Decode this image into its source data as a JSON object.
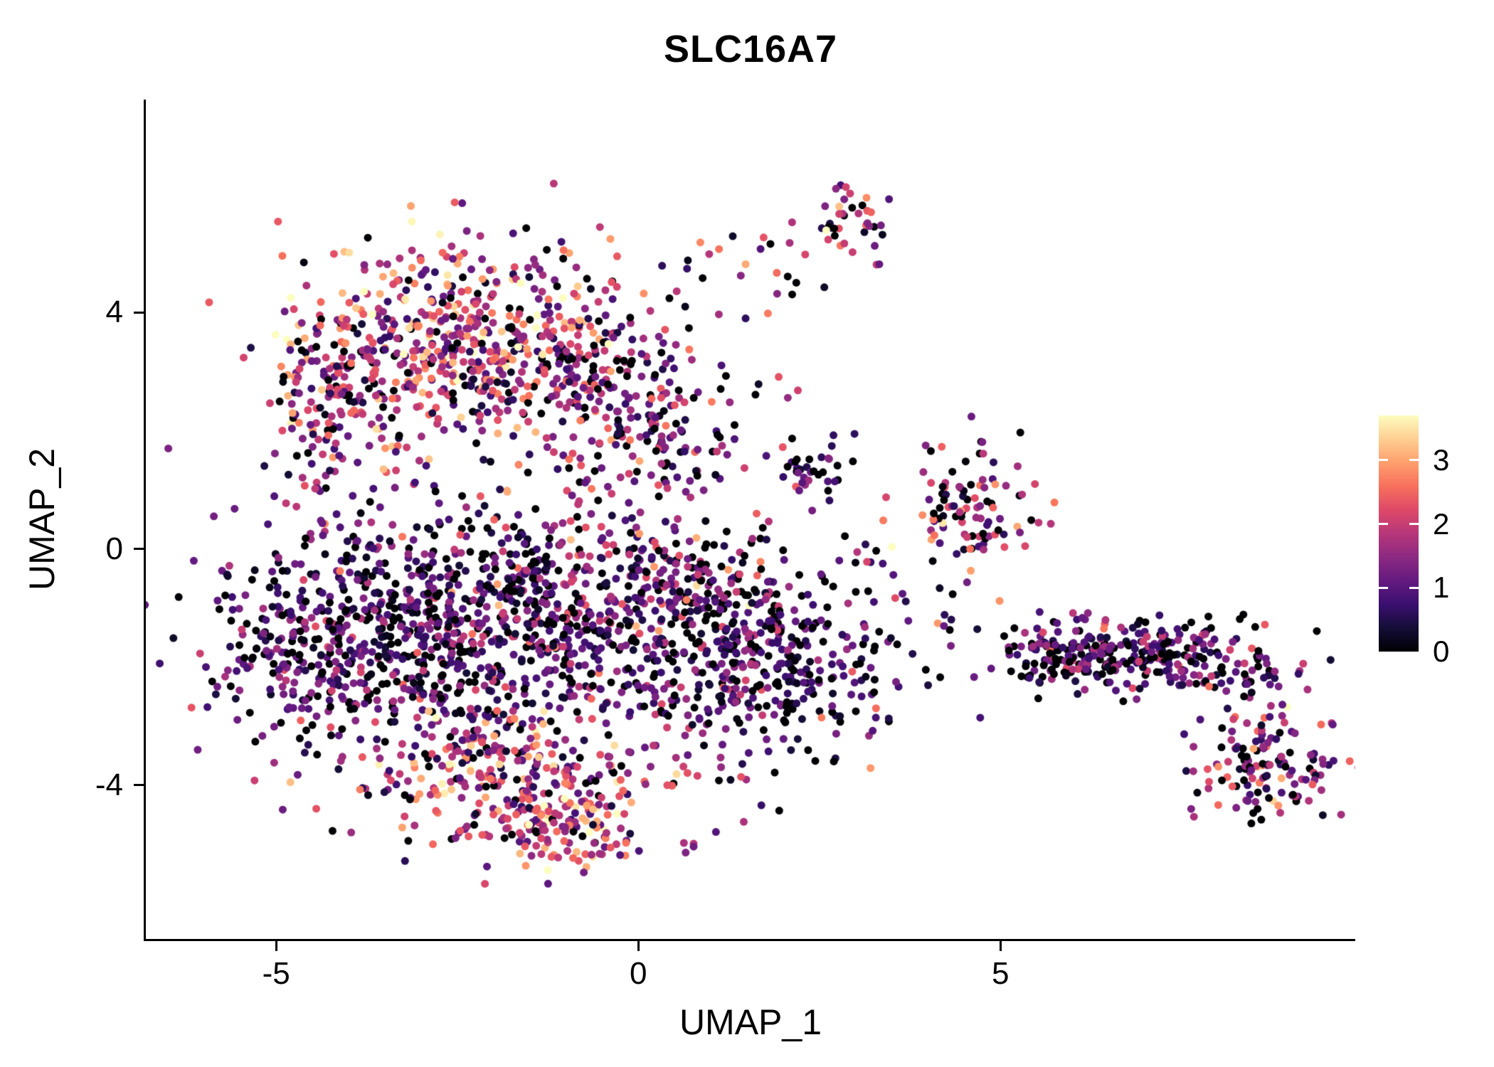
{
  "chart_data": {
    "type": "scatter",
    "title": "SLC16A7",
    "xlabel": "UMAP_1",
    "ylabel": "UMAP_2",
    "xlim": [
      -6.8,
      9.9
    ],
    "ylim": [
      -6.6,
      7.6
    ],
    "x_ticks": [
      -5,
      0,
      5
    ],
    "y_ticks": [
      4,
      0,
      -4
    ],
    "grid": false,
    "legend_position": "right",
    "point_radius": 5.5,
    "colorbar": {
      "label_values": [
        "3",
        "2",
        "1",
        "0"
      ],
      "min": 0,
      "max": 3.7,
      "ticks": [
        0,
        1,
        2,
        3
      ]
    },
    "colormap_name": "magma",
    "colormap_stops": [
      {
        "t": 0.0,
        "color": "#000004"
      },
      {
        "t": 0.1,
        "color": "#140e36"
      },
      {
        "t": 0.2,
        "color": "#3b0f70"
      },
      {
        "t": 0.3,
        "color": "#641a80"
      },
      {
        "t": 0.4,
        "color": "#8c2981"
      },
      {
        "t": 0.5,
        "color": "#b73779"
      },
      {
        "t": 0.6,
        "color": "#de4968"
      },
      {
        "t": 0.7,
        "color": "#f7705c"
      },
      {
        "t": 0.8,
        "color": "#fe9f6d"
      },
      {
        "t": 0.9,
        "color": "#fecf92"
      },
      {
        "t": 1.0,
        "color": "#fcfdbf"
      }
    ],
    "clusters": [
      {
        "name": "top-left-main",
        "cx": -2.5,
        "cy": 3.6,
        "sx": 1.05,
        "sy": 0.85,
        "n": 420,
        "expr": {
          "zero_frac": 0.07,
          "mean": 1.9,
          "sd": 1.0
        }
      },
      {
        "name": "top-left-west-arm",
        "cx": -4.15,
        "cy": 2.9,
        "sx": 0.55,
        "sy": 0.6,
        "n": 140,
        "expr": {
          "zero_frac": 0.1,
          "mean": 1.7,
          "sd": 1.0
        }
      },
      {
        "name": "left-mid-band",
        "cx": -4.35,
        "cy": 1.6,
        "sx": 0.35,
        "sy": 0.6,
        "n": 60,
        "expr": {
          "zero_frac": 0.15,
          "mean": 1.3,
          "sd": 0.8
        }
      },
      {
        "name": "top-mid-extension",
        "cx": -0.9,
        "cy": 2.9,
        "sx": 0.75,
        "sy": 0.85,
        "n": 190,
        "expr": {
          "zero_frac": 0.12,
          "mean": 1.4,
          "sd": 0.9
        }
      },
      {
        "name": "upper-center-lobe",
        "cx": 0.3,
        "cy": 1.9,
        "sx": 0.55,
        "sy": 0.9,
        "n": 140,
        "expr": {
          "zero_frac": 0.15,
          "mean": 1.2,
          "sd": 0.8
        }
      },
      {
        "name": "central-mass",
        "cx": -3.0,
        "cy": -1.4,
        "sx": 1.35,
        "sy": 1.05,
        "n": 760,
        "expr": {
          "zero_frac": 0.2,
          "mean": 0.95,
          "sd": 0.65
        }
      },
      {
        "name": "central-east",
        "cx": -1.0,
        "cy": -0.9,
        "sx": 0.9,
        "sy": 0.9,
        "n": 280,
        "expr": {
          "zero_frac": 0.15,
          "mean": 1.1,
          "sd": 0.75
        }
      },
      {
        "name": "left-edge",
        "cx": -4.9,
        "cy": -1.8,
        "sx": 0.45,
        "sy": 0.8,
        "n": 110,
        "expr": {
          "zero_frac": 0.2,
          "mean": 1.0,
          "sd": 0.7
        }
      },
      {
        "name": "bottom-arc",
        "cx": -1.6,
        "cy": -3.9,
        "sx": 1.15,
        "sy": 0.65,
        "n": 320,
        "expr": {
          "zero_frac": 0.05,
          "mean": 1.9,
          "sd": 0.95
        }
      },
      {
        "name": "bottom-tip",
        "cx": -1.0,
        "cy": -4.8,
        "sx": 0.5,
        "sy": 0.35,
        "n": 80,
        "expr": {
          "zero_frac": 0.05,
          "mean": 2.0,
          "sd": 0.9
        }
      },
      {
        "name": "mid-right-mass",
        "cx": 1.6,
        "cy": -1.9,
        "sx": 1.0,
        "sy": 0.85,
        "n": 420,
        "expr": {
          "zero_frac": 0.25,
          "mean": 0.9,
          "sd": 0.6
        }
      },
      {
        "name": "mid-right-north",
        "cx": 0.9,
        "cy": -0.6,
        "sx": 0.6,
        "sy": 0.5,
        "n": 110,
        "expr": {
          "zero_frac": 0.15,
          "mean": 1.3,
          "sd": 0.9
        }
      },
      {
        "name": "strand-to-top",
        "cx": 1.2,
        "cy": 4.6,
        "sx": 0.8,
        "sy": 0.45,
        "n": 22,
        "expr": {
          "zero_frac": 0.15,
          "mean": 1.5,
          "sd": 1.0
        }
      },
      {
        "name": "top-small-cluster",
        "cx": 2.95,
        "cy": 5.6,
        "sx": 0.22,
        "sy": 0.28,
        "n": 40,
        "expr": {
          "zero_frac": 0.15,
          "mean": 1.6,
          "sd": 1.1
        }
      },
      {
        "name": "inner-small-cluster",
        "cx": 2.45,
        "cy": 1.35,
        "sx": 0.28,
        "sy": 0.22,
        "n": 35,
        "expr": {
          "zero_frac": 0.25,
          "mean": 0.9,
          "sd": 0.7
        }
      },
      {
        "name": "right-mid-cluster",
        "cx": 4.6,
        "cy": 0.75,
        "sx": 0.45,
        "sy": 0.5,
        "n": 100,
        "expr": {
          "zero_frac": 0.18,
          "mean": 1.5,
          "sd": 1.1
        }
      },
      {
        "name": "sparse-bridge",
        "cx": 3.4,
        "cy": -0.9,
        "sx": 0.9,
        "sy": 0.7,
        "n": 18,
        "expr": {
          "zero_frac": 0.2,
          "mean": 1.4,
          "sd": 0.9
        }
      },
      {
        "name": "east-band",
        "cx": 7.0,
        "cy": -1.8,
        "sx": 1.05,
        "sy": 0.33,
        "n": 270,
        "expr": {
          "zero_frac": 0.28,
          "mean": 0.95,
          "sd": 0.7
        }
      },
      {
        "name": "east-band-west-tip",
        "cx": 5.75,
        "cy": -1.75,
        "sx": 0.35,
        "sy": 0.2,
        "n": 55,
        "expr": {
          "zero_frac": 0.25,
          "mean": 1.0,
          "sd": 0.7
        }
      },
      {
        "name": "southeast-tail",
        "cx": 8.75,
        "cy": -3.8,
        "sx": 0.55,
        "sy": 0.4,
        "n": 115,
        "expr": {
          "zero_frac": 0.08,
          "mean": 1.4,
          "sd": 0.8
        }
      },
      {
        "name": "southeast-connector",
        "cx": 8.55,
        "cy": -2.8,
        "sx": 0.35,
        "sy": 0.45,
        "n": 40,
        "expr": {
          "zero_frac": 0.15,
          "mean": 1.2,
          "sd": 0.8
        }
      },
      {
        "name": "diffuse-background",
        "cx": -0.5,
        "cy": 0.3,
        "sx": 3.0,
        "sy": 2.2,
        "n": 55,
        "expr": {
          "zero_frac": 0.2,
          "mean": 1.2,
          "sd": 0.9
        }
      }
    ]
  }
}
